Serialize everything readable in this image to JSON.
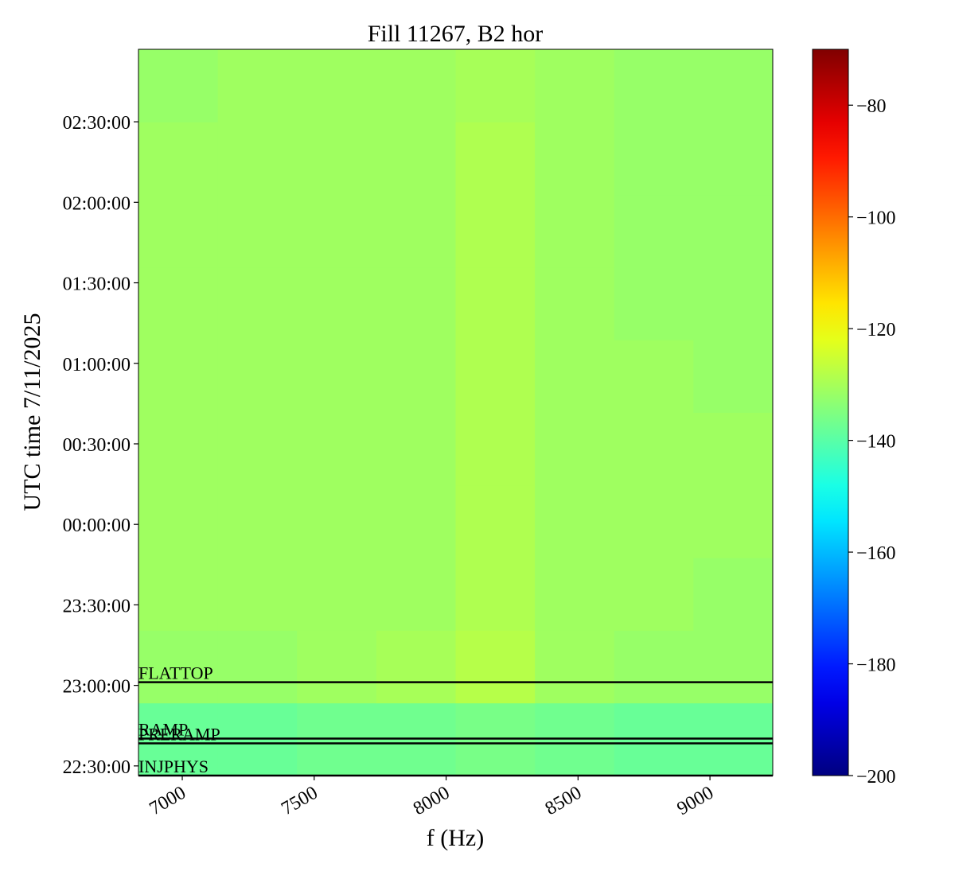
{
  "chart_data": {
    "type": "heatmap",
    "title": "Fill 11267, B2 hor",
    "xlabel": "f (Hz)",
    "ylabel": "UTC time 7/11/2025",
    "xlim": [
      6834,
      9238
    ],
    "xticks": [
      7000,
      7500,
      8000,
      8500,
      9000
    ],
    "ylim": [
      22.44,
      26.95
    ],
    "yticks": [
      {
        "value": 22.5,
        "label": "22:30:00"
      },
      {
        "value": 23,
        "label": "23:00:00"
      },
      {
        "value": 23.5,
        "label": "23:30:00"
      },
      {
        "value": 24,
        "label": "00:00:00"
      },
      {
        "value": 24.5,
        "label": "00:30:00"
      },
      {
        "value": 25,
        "label": "01:00:00"
      },
      {
        "value": 25.5,
        "label": "01:30:00"
      },
      {
        "value": 26,
        "label": "02:00:00"
      },
      {
        "value": 26.5,
        "label": "02:30:00"
      }
    ],
    "zlim": [
      -200,
      -70
    ],
    "zticks": [
      {
        "value": -200,
        "label": "−200"
      },
      {
        "value": -180,
        "label": "−180"
      },
      {
        "value": -160,
        "label": "−160"
      },
      {
        "value": -140,
        "label": "−140"
      },
      {
        "value": -120,
        "label": "−120"
      },
      {
        "value": -100,
        "label": "−100"
      },
      {
        "value": -80,
        "label": "−80"
      }
    ],
    "colormap": "jet",
    "values": [
      [
        -138,
        -138,
        -137,
        -137,
        -136,
        -137,
        -138,
        -138
      ],
      [
        -132,
        -132,
        -131,
        -130,
        -128,
        -131,
        -132,
        -132
      ],
      [
        -131,
        -131,
        -131,
        -131,
        -129,
        -131,
        -131,
        -132
      ],
      [
        -131,
        -131,
        -131,
        -131,
        -129,
        -131,
        -131,
        -131
      ],
      [
        -131,
        -131,
        -131,
        -131,
        -129,
        -131,
        -131,
        -131
      ],
      [
        -131,
        -131,
        -131,
        -131,
        -129,
        -131,
        -131,
        -132
      ],
      [
        -131,
        -131,
        -131,
        -131,
        -129,
        -131,
        -132,
        -132
      ],
      [
        -131,
        -131,
        -131,
        -131,
        -129,
        -131,
        -132,
        -132
      ],
      [
        -131,
        -131,
        -131,
        -131,
        -129,
        -131,
        -132,
        -132
      ],
      [
        -132,
        -131,
        -131,
        -131,
        -130,
        -131,
        -132,
        -132
      ]
    ],
    "events": [
      {
        "label": "FLATTOP",
        "y": 23.02
      },
      {
        "label": "RAMP",
        "y": 22.67
      },
      {
        "label": "PRERAMP",
        "y": 22.64
      },
      {
        "label": "INJPHYS",
        "y": 22.44
      }
    ]
  }
}
